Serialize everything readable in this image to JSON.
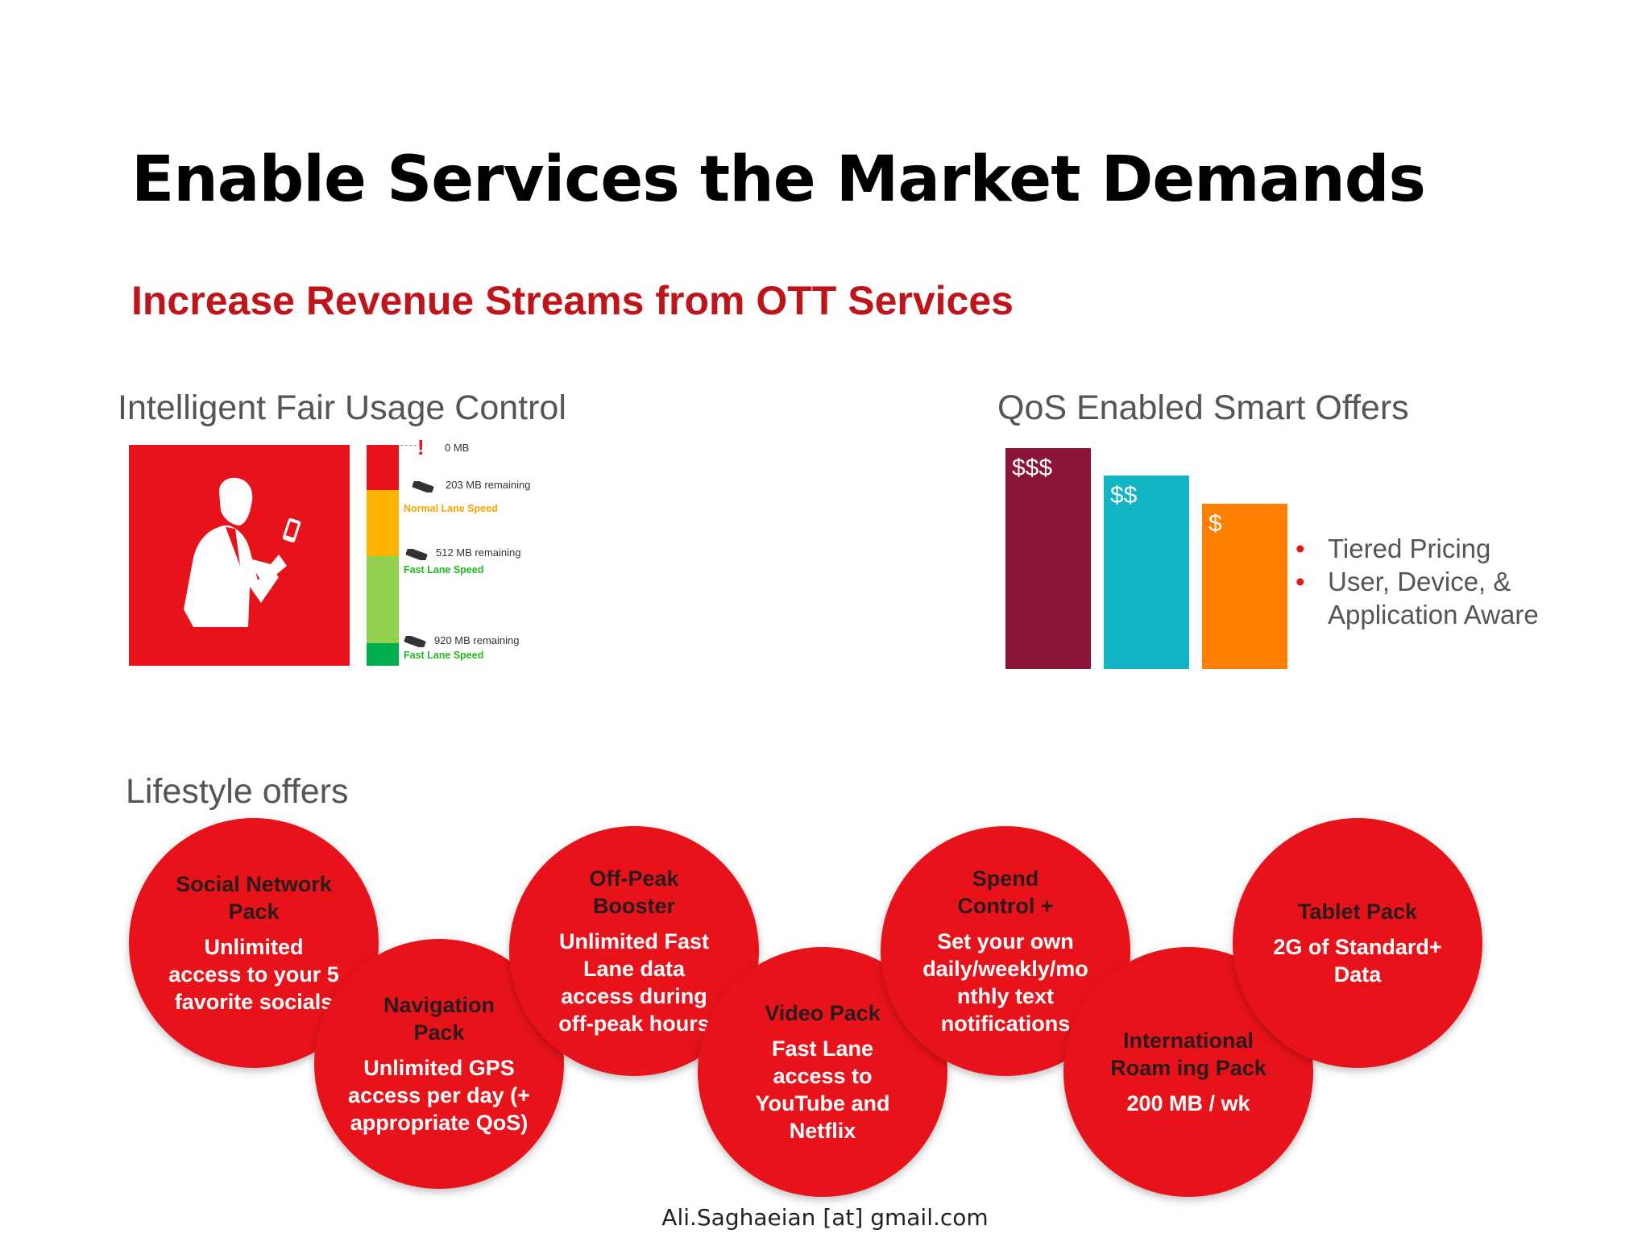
{
  "title": "Enable Services the Market Demands",
  "subtitle": "Increase Revenue Streams from OTT Services",
  "colors": {
    "accent": "#e8131a",
    "subtitle": "#c0141b"
  },
  "fair_usage": {
    "heading": "Intelligent Fair Usage Control",
    "icon": "person-with-phone-icon",
    "levels": [
      {
        "label": "0 MB",
        "color": "#e8131a"
      },
      {
        "label": "203 MB remaining",
        "speed": "Normal Lane Speed",
        "speed_color": "#f5a400",
        "color": "#fdb400"
      },
      {
        "label": "512 MB remaining",
        "speed": "Fast Lane Speed",
        "speed_color": "#1fb81f",
        "color": "#92d050"
      },
      {
        "label": "920 MB remaining",
        "speed": "Fast Lane Speed",
        "speed_color": "#1fb81f",
        "color": "#00b050"
      }
    ]
  },
  "qos": {
    "heading": "QoS Enabled Smart Offers",
    "tiers": [
      {
        "label": "$$$",
        "color": "#8b1538",
        "level": 3
      },
      {
        "label": "$$",
        "color": "#12b5c3",
        "level": 2
      },
      {
        "label": "$",
        "color": "#ff7f00",
        "level": 1
      }
    ],
    "bullets": [
      "Tiered Pricing",
      "User, Device, & Application Aware"
    ]
  },
  "lifestyle": {
    "heading": "Lifestyle offers",
    "offers": [
      {
        "title": "Social Network Pack",
        "body": "Unlimited access to your 5 favorite socials"
      },
      {
        "title": "Navigation Pack",
        "body": "Unlimited GPS access per day (+ appropriate QoS)"
      },
      {
        "title": "Off-Peak Booster",
        "body": "Unlimited Fast Lane data access during off-peak hours"
      },
      {
        "title": "Video Pack",
        "body": "Fast Lane access to YouTube and Netflix"
      },
      {
        "title": "Spend Control +",
        "body": "Set your own daily/weekly/mo nthly text notifications"
      },
      {
        "title": "International Roam ing Pack",
        "body": "200 MB / wk"
      },
      {
        "title": "Tablet Pack",
        "body": "2G of Standard+ Data"
      }
    ]
  },
  "footer": "Ali.Saghaeian [at] gmail.com"
}
